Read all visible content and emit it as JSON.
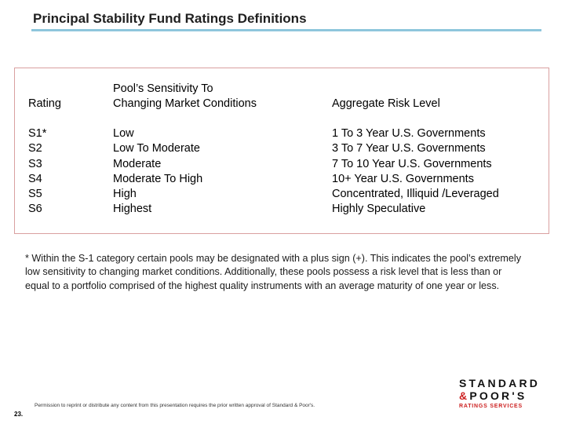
{
  "title": "Principal Stability Fund Ratings Definitions",
  "table": {
    "headers": {
      "rating": "Rating",
      "sensitivity_line1": "Pool’s Sensitivity To",
      "sensitivity_line2": "Changing Market Conditions",
      "risk": "Aggregate Risk Level"
    },
    "rows": [
      {
        "rating": "S1*",
        "sensitivity": "Low",
        "risk": "1 To 3 Year U.S. Governments"
      },
      {
        "rating": "S2",
        "sensitivity": "Low To Moderate",
        "risk": "3 To 7 Year U.S. Governments"
      },
      {
        "rating": "S3",
        "sensitivity": "Moderate",
        "risk": "7 To 10 Year U.S. Governments"
      },
      {
        "rating": "S4",
        "sensitivity": "Moderate To High",
        "risk": "10+ Year U.S. Governments"
      },
      {
        "rating": "S5",
        "sensitivity": "High",
        "risk": "Concentrated, Illiquid /Leveraged"
      },
      {
        "rating": "S6",
        "sensitivity": "Highest",
        "risk": "Highly Speculative"
      }
    ]
  },
  "footnote": "* Within the S-1 category certain pools may be designated with a plus sign (+). This indicates the pool’s extremely low sensitivity to changing market conditions. Additionally, these pools possess a risk level that is less than or equal to a portfolio comprised of the highest quality instruments with an average maturity of one year or less.",
  "footer": "Permission to reprint or distribute any content from this presentation requires the prior written approval of Standard & Poor's.",
  "page_number": "23.",
  "logo": {
    "line1": "STANDARD",
    "line2_amp": "&",
    "line2_rest": "POOR'S",
    "line3": "RATINGS SERVICES"
  },
  "colors": {
    "title_rule": "#8ec6dc",
    "box_border": "#d9a0a0",
    "brand_red": "#cc1f1f"
  }
}
